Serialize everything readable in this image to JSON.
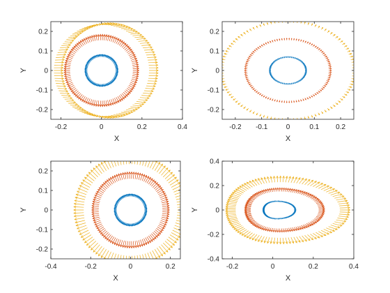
{
  "colors": {
    "blue": "#0072BD",
    "orange": "#D95319",
    "yellow": "#EDB120",
    "axis": "#262626"
  },
  "chart_data": [
    {
      "type": "quiver",
      "xlabel": "X",
      "ylabel": "Y",
      "xlim": [
        -0.25,
        0.4
      ],
      "ylim": [
        -0.25,
        0.25
      ],
      "xticks": [
        "-0.2",
        "0",
        "0.2",
        "0.4"
      ],
      "yticks": [
        "-0.2",
        "-0.1",
        "0",
        "0.1",
        "0.2"
      ],
      "xtick_values": [
        -0.2,
        0,
        0.2,
        0.4
      ],
      "ytick_values": [
        -0.2,
        -0.1,
        0,
        0.1,
        0.2
      ],
      "series": [
        {
          "color": "#0072BD",
          "shape": "circle",
          "cx": 0.0,
          "cy": 0.0,
          "rx": 0.07,
          "ry": 0.07,
          "arrow_len": 0.012,
          "arrow_dir": "radial"
        },
        {
          "color": "#D95319",
          "shape": "circle",
          "cx": 0.0,
          "cy": 0.0,
          "rx": 0.155,
          "ry": 0.155,
          "arrow_len": 0.03,
          "arrow_dir": "radial"
        },
        {
          "color": "#EDB120",
          "shape": "circle",
          "cx": 0.0,
          "cy": 0.0,
          "rx": 0.235,
          "ry": 0.235,
          "arrow_len": 0.045,
          "arrow_dir": "plus-x"
        }
      ]
    },
    {
      "type": "quiver",
      "xlabel": "X",
      "ylabel": "Y",
      "xlim": [
        -0.25,
        0.25
      ],
      "ylim": [
        -0.25,
        0.25
      ],
      "xticks": [
        "-0.2",
        "-0.1",
        "0",
        "0.1",
        "0.2"
      ],
      "yticks": [
        "-0.2",
        "-0.1",
        "0",
        "0.1",
        "0.2"
      ],
      "xtick_values": [
        -0.2,
        -0.1,
        0,
        0.1,
        0.2
      ],
      "ytick_values": [
        -0.2,
        -0.1,
        0,
        0.1,
        0.2
      ],
      "series": [
        {
          "color": "#0072BD",
          "shape": "circle",
          "cx": 0.0,
          "cy": 0.0,
          "rx": 0.065,
          "ry": 0.065,
          "arrow_len": 0.006,
          "arrow_dir": "radial"
        },
        {
          "color": "#D95319",
          "shape": "circle",
          "cx": 0.0,
          "cy": 0.0,
          "rx": 0.155,
          "ry": 0.155,
          "arrow_len": 0.01,
          "arrow_dir": "radial"
        },
        {
          "color": "#EDB120",
          "shape": "circle",
          "cx": 0.0,
          "cy": 0.0,
          "rx": 0.245,
          "ry": 0.245,
          "arrow_len": 0.012,
          "arrow_dir": "radial"
        }
      ]
    },
    {
      "type": "quiver",
      "xlabel": "X",
      "ylabel": "Y",
      "xlim": [
        -0.4,
        0.25
      ],
      "ylim": [
        -0.25,
        0.25
      ],
      "xticks": [
        "-0.4",
        "-0.2",
        "0",
        "0.2"
      ],
      "yticks": [
        "-0.2",
        "-0.1",
        "0",
        "0.1",
        "0.2"
      ],
      "xtick_values": [
        -0.4,
        -0.2,
        0,
        0.2
      ],
      "ytick_values": [
        -0.2,
        -0.1,
        0,
        0.1,
        0.2
      ],
      "series": [
        {
          "color": "#0072BD",
          "shape": "circle",
          "cx": 0.0,
          "cy": 0.0,
          "rx": 0.07,
          "ry": 0.07,
          "arrow_len": 0.012,
          "arrow_dir": "radial"
        },
        {
          "color": "#D95319",
          "shape": "circle",
          "cx": 0.0,
          "cy": 0.0,
          "rx": 0.16,
          "ry": 0.16,
          "arrow_len": 0.035,
          "arrow_dir": "radial"
        },
        {
          "color": "#EDB120",
          "shape": "circle",
          "cx": 0.0,
          "cy": 0.0,
          "rx": 0.235,
          "ry": 0.235,
          "arrow_len": 0.05,
          "arrow_dir": "radial"
        }
      ]
    },
    {
      "type": "quiver",
      "xlabel": "X",
      "ylabel": "Y",
      "xlim": [
        -0.25,
        0.4
      ],
      "ylim": [
        -0.4,
        0.4
      ],
      "xticks": [
        "-0.2",
        "0",
        "0.2",
        "0.4"
      ],
      "yticks": [
        "-0.4",
        "-0.2",
        "0",
        "0.2",
        "0.4"
      ],
      "xtick_values": [
        -0.2,
        0,
        0.2,
        0.4
      ],
      "ytick_values": [
        -0.4,
        -0.2,
        0,
        0.2,
        0.4
      ],
      "series": [
        {
          "color": "#0072BD",
          "shape": "egg",
          "cx": 0.02,
          "cy": 0.0,
          "rx": 0.07,
          "ry": 0.07,
          "arrow_len": 0.008,
          "arrow_dir": "radial"
        },
        {
          "color": "#D95319",
          "shape": "egg",
          "cx": 0.03,
          "cy": 0.0,
          "rx": 0.16,
          "ry": 0.16,
          "arrow_len": 0.03,
          "arrow_dir": "radial"
        },
        {
          "color": "#EDB120",
          "shape": "egg",
          "cx": 0.03,
          "cy": 0.0,
          "rx": 0.245,
          "ry": 0.24,
          "arrow_len": 0.05,
          "arrow_dir": "radial"
        }
      ]
    }
  ]
}
